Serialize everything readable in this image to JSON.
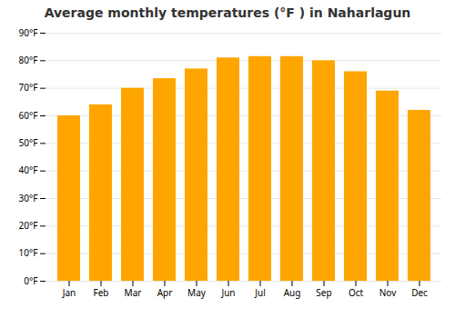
{
  "chart_data": {
    "type": "bar",
    "title": "Average monthly temperatures (°F ) in Naharlagun",
    "categories": [
      "Jan",
      "Feb",
      "Mar",
      "Apr",
      "May",
      "Jun",
      "Jul",
      "Aug",
      "Sep",
      "Oct",
      "Nov",
      "Dec"
    ],
    "values": [
      60,
      64,
      70,
      73.5,
      77,
      81,
      81.5,
      81.5,
      80,
      76,
      69,
      62
    ],
    "color": "#FFA500",
    "ylim": [
      0,
      90
    ],
    "yticks": [
      {
        "value": 0,
        "label": "0°F"
      },
      {
        "value": 10,
        "label": "10°F"
      },
      {
        "value": 20,
        "label": "20°F"
      },
      {
        "value": 30,
        "label": "30°F"
      },
      {
        "value": 40,
        "label": "40°F"
      },
      {
        "value": 50,
        "label": "50°F"
      },
      {
        "value": 60,
        "label": "60°F"
      },
      {
        "value": 70,
        "label": "70°F"
      },
      {
        "value": 80,
        "label": "80°F"
      },
      {
        "value": 90,
        "label": "90°F"
      }
    ],
    "grid": true
  }
}
